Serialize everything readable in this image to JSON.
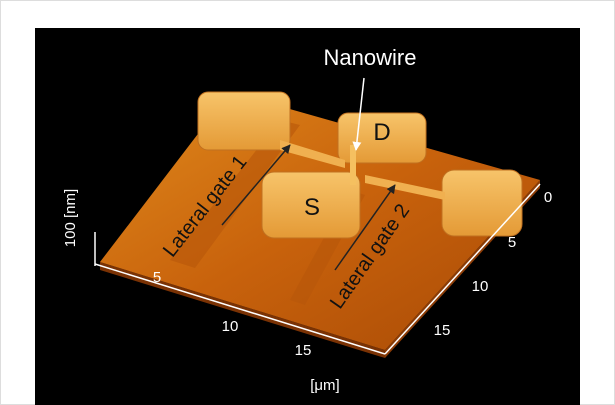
{
  "figure": {
    "annotations": {
      "nanowire": "Nanowire",
      "drain": "D",
      "source": "S",
      "gate1": "Lateral gate 1",
      "gate2": "Lateral gate 2"
    },
    "z_axis_label": "100 [nm]",
    "x_axis": {
      "label": "[μm]",
      "ticks": [
        "5",
        "10",
        "15"
      ]
    },
    "y_axis": {
      "ticks": [
        "0",
        "5",
        "10",
        "15"
      ]
    }
  }
}
